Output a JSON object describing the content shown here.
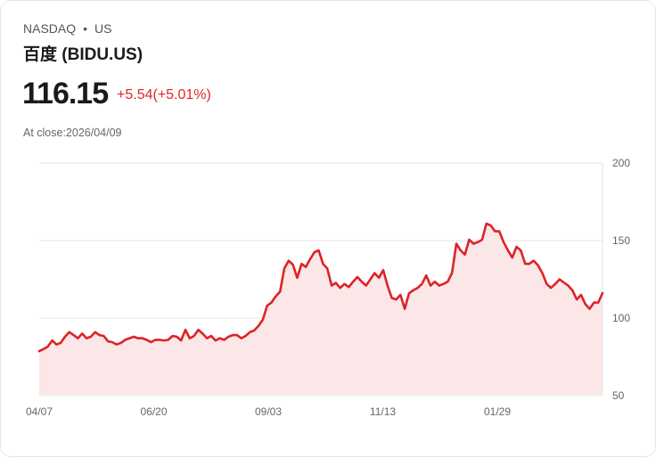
{
  "header": {
    "exchange": "NASDAQ",
    "separator": "•",
    "market": "US",
    "name": "百度 (BIDU.US)",
    "price": "116.15",
    "change": "+5.54(+5.01%)",
    "close_label": "At close:2026/04/09"
  },
  "colors": {
    "line": "#dd2326",
    "fill": "#fbe7e8",
    "grid": "#e6e6e6",
    "up": "#e0262b"
  },
  "chart_data": {
    "type": "area",
    "title": "",
    "xlabel": "",
    "ylabel": "",
    "ylim": [
      50,
      200
    ],
    "yticks": [
      50,
      100,
      150,
      200
    ],
    "ytick_labels": [
      "50",
      "100",
      "150",
      "200"
    ],
    "xtick_labels": [
      "04/07",
      "06/20",
      "09/03",
      "11/13",
      "01/29"
    ],
    "grid": true,
    "values": [
      78.7,
      80,
      81.6,
      85.6,
      83,
      84,
      88,
      91,
      89,
      87,
      90,
      87,
      88,
      91,
      89,
      88.5,
      85,
      84.5,
      83,
      84,
      86,
      87,
      88,
      87,
      87,
      86,
      84.5,
      86,
      86,
      85.6,
      86,
      88.5,
      88,
      85.6,
      92.5,
      87,
      88.5,
      92.5,
      90,
      87,
      88.5,
      85.6,
      87,
      86,
      88,
      89,
      89,
      87,
      88.5,
      91,
      92,
      95,
      99,
      108,
      110,
      114,
      117,
      132,
      137,
      134.5,
      126,
      135,
      133,
      138,
      142.5,
      143.7,
      135,
      132,
      121,
      122.7,
      119.5,
      122,
      120,
      123.5,
      126.5,
      123.5,
      121,
      125,
      129,
      126,
      131,
      121,
      113,
      112,
      115,
      106,
      116,
      118,
      119.5,
      122,
      127.5,
      121,
      123.5,
      121,
      122,
      123.5,
      129,
      148,
      143.7,
      141,
      150.6,
      148,
      149,
      150.6,
      161,
      159.7,
      156,
      156,
      149,
      143.7,
      139,
      146,
      143.7,
      135,
      135,
      137,
      134,
      129,
      122,
      119.5,
      122,
      125,
      123,
      121,
      118,
      112,
      115,
      109,
      106,
      110,
      110,
      116.15
    ]
  }
}
